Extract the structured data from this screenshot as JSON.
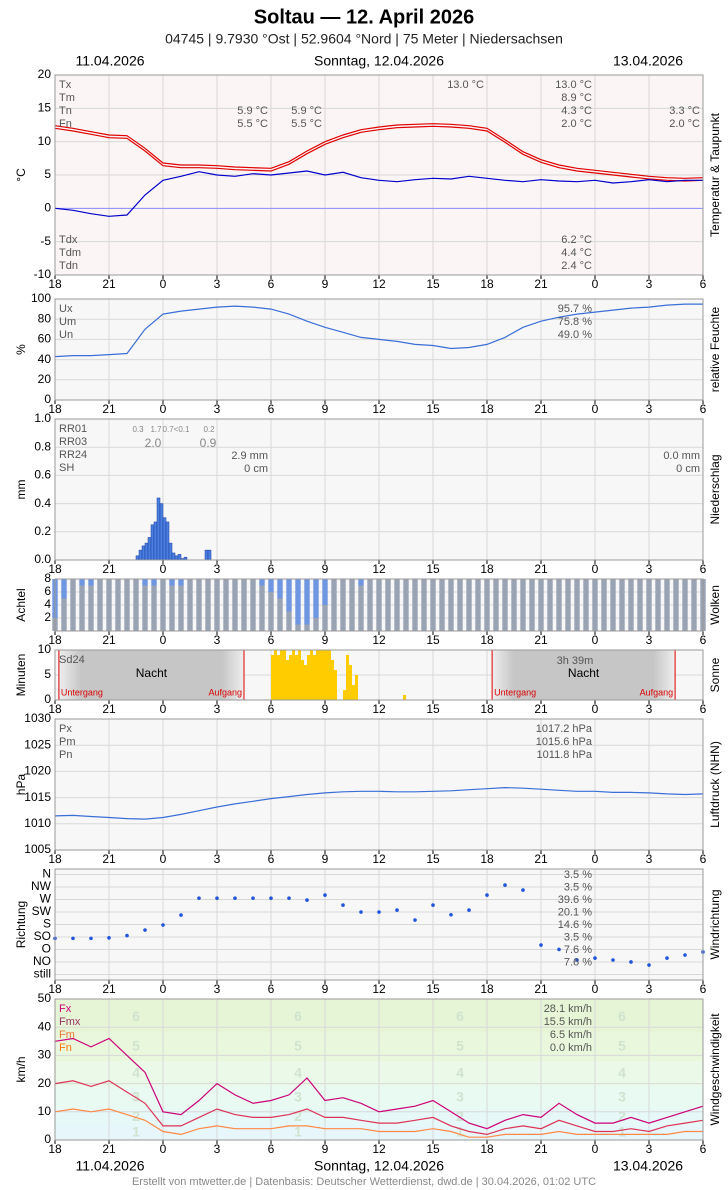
{
  "header": {
    "title": "Soltau  —  12. April 2026",
    "subtitle": "04745  |  9.7930 °Ost  |  52.9604 °Nord  |  75 Meter  |  Niedersachsen",
    "date_left": "11.04.2026",
    "date_center": "Sonntag, 12.04.2026",
    "date_right": "13.04.2026"
  },
  "footer": "Erstellt von mtwetter.de | Datenbasis: Deutscher Wetterdienst, dwd.de | 30.04.2026, 01:02 UTC",
  "x_axis": {
    "xlim": [
      0,
      2160
    ],
    "xticks": [
      {
        "value": 0,
        "label": "18"
      },
      {
        "value": 180,
        "label": "21"
      },
      {
        "value": 360,
        "label": "0"
      },
      {
        "value": 540,
        "label": "3"
      },
      {
        "value": 720,
        "label": "6"
      },
      {
        "value": 900,
        "label": "9"
      },
      {
        "value": 1080,
        "label": "12"
      },
      {
        "value": 1260,
        "label": "15"
      },
      {
        "value": 1440,
        "label": "18"
      },
      {
        "value": 1620,
        "label": "21"
      },
      {
        "value": 1800,
        "label": "0"
      },
      {
        "value": 1980,
        "label": "3"
      },
      {
        "value": 2160,
        "label": "6"
      }
    ]
  },
  "chart_data": [
    {
      "type": "line",
      "ylabel": "°C",
      "side_title": "Temperatur & Taupunkt",
      "ylim": [
        -10,
        20
      ],
      "yticks": [
        -10,
        -5,
        0,
        5,
        10,
        15,
        20
      ],
      "x": [
        0,
        60,
        120,
        180,
        240,
        300,
        360,
        420,
        480,
        540,
        600,
        660,
        720,
        780,
        840,
        900,
        960,
        1020,
        1080,
        1140,
        1200,
        1260,
        1320,
        1380,
        1440,
        1500,
        1560,
        1620,
        1680,
        1740,
        1800,
        1860,
        1920,
        1980,
        2040,
        2100,
        2160
      ],
      "series": [
        {
          "color": "#e00000",
          "values": [
            12.4,
            12.0,
            11.5,
            11.0,
            10.9,
            9.0,
            6.8,
            6.5,
            6.5,
            6.4,
            6.2,
            6.1,
            6.0,
            7.0,
            8.6,
            10.0,
            11.0,
            11.8,
            12.2,
            12.5,
            12.6,
            12.7,
            12.6,
            12.4,
            12.0,
            10.3,
            8.5,
            7.3,
            6.5,
            6.0,
            5.7,
            5.4,
            5.1,
            4.8,
            4.6,
            4.5,
            4.6
          ]
        },
        {
          "color": "#e00000",
          "values": [
            12.0,
            11.6,
            11.1,
            10.6,
            10.5,
            8.6,
            6.4,
            6.1,
            6.1,
            6.0,
            5.8,
            5.7,
            5.6,
            6.6,
            8.2,
            9.6,
            10.6,
            11.4,
            11.8,
            12.1,
            12.2,
            12.3,
            12.2,
            12.0,
            11.6,
            9.9,
            8.1,
            6.9,
            6.1,
            5.6,
            5.3,
            5.0,
            4.7,
            4.4,
            4.2,
            4.1,
            4.2
          ]
        },
        {
          "color": "#0000cc",
          "values": [
            0,
            -0.3,
            -0.8,
            -1.2,
            -1.0,
            2.0,
            4.2,
            4.8,
            5.5,
            5.0,
            4.8,
            5.2,
            5.0,
            5.3,
            5.6,
            5.0,
            5.4,
            4.6,
            4.2,
            4.0,
            4.3,
            4.5,
            4.4,
            4.8,
            4.5,
            4.2,
            4.0,
            4.3,
            4.1,
            4.0,
            4.2,
            3.8,
            4.0,
            4.3,
            4.0,
            4.2,
            4.2
          ]
        }
      ],
      "stat_labels": [
        "Tx",
        "Tm",
        "Tn",
        "Fn"
      ],
      "stat_values": [
        "13.0 °C",
        "8.9 °C",
        "4.3 °C",
        "2.0 °C"
      ],
      "dew_labels": [
        "Tdx",
        "Tdm",
        "Tdn"
      ],
      "dew_values": [
        "6.2 °C",
        "4.4 °C",
        "2.4 °C"
      ],
      "notes": [
        "13.0 °C",
        "5.9 °C",
        "5.5 °C",
        "5.9 °C",
        "5.5 °C",
        "3.3 °C",
        "2.0 °C"
      ]
    },
    {
      "type": "line",
      "ylabel": "%",
      "side_title": "relative Feuchte",
      "ylim": [
        0,
        100
      ],
      "yticks": [
        0,
        20,
        40,
        60,
        80,
        100
      ],
      "x": [
        0,
        60,
        120,
        180,
        240,
        300,
        360,
        420,
        480,
        540,
        600,
        660,
        720,
        780,
        840,
        900,
        960,
        1020,
        1080,
        1140,
        1200,
        1260,
        1320,
        1380,
        1440,
        1500,
        1560,
        1620,
        1680,
        1740,
        1800,
        1860,
        1920,
        1980,
        2040,
        2100,
        2160
      ],
      "series": [
        {
          "color": "#3a6fd8",
          "values": [
            43,
            44,
            44,
            45,
            46,
            70,
            85,
            88,
            90,
            92,
            93,
            92,
            90,
            85,
            78,
            72,
            67,
            62,
            60,
            58,
            55,
            54,
            51,
            52,
            55,
            62,
            72,
            78,
            82,
            85,
            87,
            89,
            91,
            92,
            94,
            95,
            95
          ]
        }
      ],
      "stat_labels": [
        "Ux",
        "Um",
        "Un"
      ],
      "stat_values": [
        "95.7 %",
        "75.8 %",
        "49.0 %"
      ]
    },
    {
      "type": "histogram",
      "ylabel": "mm",
      "side_title": "Niederschlag",
      "ylim": [
        0,
        1
      ],
      "yticks": [
        {
          "value": 0,
          "label": "0.0"
        },
        0.2,
        0.4,
        0.6,
        0.8,
        {
          "value": 1,
          "label": "1.0"
        }
      ],
      "color": "#4a7fe0",
      "bins": [
        270,
        280,
        290,
        300,
        310,
        320,
        330,
        340,
        350,
        360,
        370,
        380,
        390,
        400,
        410,
        420,
        430,
        440,
        450,
        460,
        470,
        480,
        490,
        500,
        510,
        520
      ],
      "values": [
        0.03,
        0.07,
        0.1,
        0.12,
        0.16,
        0.25,
        0.27,
        0.44,
        0.4,
        0.3,
        0.27,
        0.12,
        0.05,
        0.03,
        0.04,
        0.01,
        0.02,
        0,
        0,
        0,
        0,
        0,
        0,
        0.07,
        0.07
      ],
      "stat_labels": [
        "RR01",
        "RR03",
        "RR24",
        "SH"
      ],
      "notes": [
        "0.3",
        "1.7",
        "0.7<0.1",
        "0.2",
        "2.0",
        "0.9",
        "2.9 mm",
        "0 cm",
        "0.0 mm",
        "0 cm"
      ]
    },
    {
      "type": "bar",
      "ylabel": "Achtel",
      "side_title": "Wolken",
      "ylim": [
        0,
        8
      ],
      "yticks": [
        2,
        4,
        6,
        8
      ],
      "color": "#9aa3b4",
      "sky_color": "#6f96e0",
      "x": [
        0,
        30,
        60,
        90,
        120,
        150,
        180,
        210,
        240,
        270,
        300,
        330,
        360,
        390,
        420,
        450,
        480,
        510,
        540,
        570,
        600,
        630,
        660,
        690,
        720,
        750,
        780,
        810,
        840,
        870,
        900,
        930,
        960,
        990,
        1020,
        1050,
        1080,
        1110,
        1140,
        1170,
        1200,
        1230,
        1260,
        1290,
        1320,
        1350,
        1380,
        1410,
        1440,
        1470,
        1500,
        1530,
        1560,
        1590,
        1620,
        1650,
        1680,
        1710,
        1740,
        1770,
        1800,
        1830,
        1860,
        1890,
        1920,
        1950,
        1980,
        2010,
        2040,
        2070,
        2100,
        2130,
        2160
      ],
      "values": [
        2,
        5,
        8,
        7,
        7,
        8,
        8,
        8,
        8,
        8,
        7,
        7,
        8,
        7,
        7,
        8,
        8,
        8,
        8,
        8,
        8,
        8,
        8,
        7,
        6,
        5,
        3,
        1,
        1,
        2,
        4,
        8,
        8,
        8,
        7,
        8,
        8,
        8,
        8,
        8,
        8,
        8,
        8,
        8,
        8,
        8,
        8,
        8,
        8,
        8,
        8,
        8,
        8,
        8,
        8,
        8,
        8,
        8,
        8,
        8,
        8,
        8,
        8,
        8,
        8,
        8,
        8,
        8,
        8,
        8,
        8,
        8,
        8
      ]
    },
    {
      "type": "histogram",
      "ylabel": "Minuten",
      "side_title": "Sonne",
      "ylim": [
        0,
        10
      ],
      "yticks": [
        0,
        5,
        10
      ],
      "color": "#ffcc00",
      "bins": [
        720,
        730,
        740,
        750,
        760,
        770,
        780,
        790,
        800,
        810,
        820,
        830,
        840,
        850,
        860,
        870,
        880,
        890,
        900,
        910,
        920,
        930,
        940,
        950,
        960,
        970,
        980,
        990,
        1000,
        1010,
        1020,
        1030,
        1040,
        1050,
        1060,
        1070,
        1080,
        1090,
        1100,
        1110,
        1120,
        1130,
        1140,
        1150,
        1160,
        1170
      ],
      "values": [
        9,
        10,
        9,
        10,
        10,
        8,
        9,
        10,
        9,
        10,
        8,
        7,
        9,
        10,
        9,
        10,
        10,
        10,
        10,
        10,
        8,
        6,
        0,
        0,
        2,
        9,
        7,
        3,
        5,
        0,
        0,
        0,
        0,
        0,
        0,
        0,
        0,
        0,
        0,
        0,
        0,
        0,
        0,
        0,
        1
      ],
      "nights": [
        {
          "from": 13,
          "to": 630
        },
        {
          "from": 1457,
          "to": 2067
        }
      ],
      "night_label": "Nacht",
      "sunset_label": "Untergang",
      "sunrise_label": "Aufgang",
      "stat_labels": [
        "Sd24"
      ],
      "notes": [
        "3h 39m"
      ]
    },
    {
      "type": "line",
      "ylabel": "hPa",
      "side_title": "Luftdruck (NHN)",
      "ylim": [
        1005,
        1030
      ],
      "yticks": [
        1005,
        1010,
        1015,
        1020,
        1025,
        1030
      ],
      "x": [
        0,
        60,
        120,
        180,
        240,
        300,
        360,
        420,
        480,
        540,
        600,
        660,
        720,
        780,
        840,
        900,
        960,
        1020,
        1080,
        1140,
        1200,
        1260,
        1320,
        1380,
        1440,
        1500,
        1560,
        1620,
        1680,
        1740,
        1800,
        1860,
        1920,
        1980,
        2040,
        2100,
        2160
      ],
      "series": [
        {
          "color": "#3a6fd8",
          "values": [
            1011.5,
            1011.6,
            1011.4,
            1011.2,
            1011.0,
            1010.9,
            1011.2,
            1011.8,
            1012.5,
            1013.2,
            1013.8,
            1014.3,
            1014.8,
            1015.2,
            1015.6,
            1015.9,
            1016.1,
            1016.2,
            1016.2,
            1016.1,
            1016.1,
            1016.2,
            1016.3,
            1016.5,
            1016.7,
            1016.9,
            1016.8,
            1016.6,
            1016.4,
            1016.2,
            1016.2,
            1016.0,
            1016.0,
            1015.9,
            1015.7,
            1015.6,
            1015.7
          ]
        }
      ],
      "stat_labels": [
        "Px",
        "Pm",
        "Pn"
      ],
      "stat_values": [
        "1017.2 hPa",
        "1015.6 hPa",
        "1011.8 hPa"
      ]
    },
    {
      "type": "scatter",
      "ylabel": "Richtung",
      "side_title": "Windrichtung",
      "ylim": [
        -20,
        380
      ],
      "color": "#2255dd",
      "yticks": [
        {
          "value": 360,
          "label": "N"
        },
        {
          "value": 315,
          "label": "NW"
        },
        {
          "value": 270,
          "label": "W"
        },
        {
          "value": 225,
          "label": "SW"
        },
        {
          "value": 180,
          "label": "S"
        },
        {
          "value": 135,
          "label": "SO"
        },
        {
          "value": 90,
          "label": "O"
        },
        {
          "value": 45,
          "label": "NO"
        },
        {
          "value": 0,
          "label": "still"
        }
      ],
      "x": [
        0,
        60,
        120,
        180,
        240,
        300,
        360,
        420,
        480,
        540,
        600,
        660,
        720,
        780,
        840,
        900,
        960,
        1020,
        1080,
        1140,
        1200,
        1260,
        1320,
        1380,
        1440,
        1500,
        1560,
        1620,
        1680,
        1740,
        1800,
        1860,
        1920,
        1980,
        2040,
        2100,
        2160
      ],
      "values": [
        130,
        130,
        130,
        132,
        140,
        160,
        178,
        214,
        275,
        275,
        275,
        275,
        275,
        275,
        268,
        286,
        250,
        225,
        225,
        232,
        196,
        250,
        215,
        232,
        286,
        322,
        304,
        106,
        90,
        52,
        59,
        52,
        45,
        34,
        59,
        70,
        81
      ],
      "stat_values": [
        "3.5 %",
        "3.5 %",
        "39.6 %",
        "20.1 %",
        "14.6 %",
        "3.5 %",
        "7.6 %",
        "7.6 %"
      ]
    },
    {
      "type": "line",
      "ylabel": "km/h",
      "side_title": "Windgeschwindigkeit",
      "ylim": [
        0,
        50
      ],
      "yticks": [
        0,
        10,
        20,
        30,
        40,
        50
      ],
      "beaufort": {
        "levels": [
          1,
          2,
          3,
          4,
          5,
          6
        ],
        "upper": [
          5,
          11,
          19,
          28,
          38,
          49
        ],
        "colors": [
          "#e6f6fb",
          "#e6f8f8",
          "#e8faf1",
          "#ebfae8",
          "#e9f8dd",
          "#e6f5d6"
        ]
      },
      "x": [
        0,
        60,
        120,
        180,
        240,
        300,
        360,
        420,
        480,
        540,
        600,
        660,
        720,
        780,
        840,
        900,
        960,
        1020,
        1080,
        1140,
        1200,
        1260,
        1320,
        1380,
        1440,
        1500,
        1560,
        1620,
        1680,
        1740,
        1800,
        1860,
        1920,
        1980,
        2040,
        2100,
        2160
      ],
      "series": [
        {
          "color": "#cc0077",
          "values": [
            35,
            36,
            33,
            36,
            30,
            24,
            10,
            9,
            14,
            20,
            16,
            13,
            14,
            16,
            22,
            14,
            15,
            13,
            10,
            11,
            12,
            14,
            10,
            6,
            4,
            7,
            9,
            8,
            13,
            9,
            6,
            6,
            8,
            6,
            8,
            10,
            12
          ]
        },
        {
          "color": "#dd3355",
          "values": [
            20,
            21,
            19,
            21,
            17,
            13,
            5,
            5,
            8,
            11,
            9,
            8,
            8,
            9,
            11,
            8,
            8,
            7,
            6,
            6,
            7,
            8,
            5,
            3,
            2,
            4,
            5,
            4,
            7,
            5,
            3,
            3,
            4,
            3,
            5,
            6,
            7
          ]
        },
        {
          "color": "#ff8844",
          "values": [
            10,
            11,
            10,
            11,
            9,
            7,
            3,
            2,
            4,
            5,
            4,
            4,
            4,
            5,
            5,
            4,
            4,
            4,
            3,
            3,
            3,
            4,
            3,
            1,
            1,
            2,
            2,
            2,
            3,
            2,
            2,
            2,
            2,
            2,
            2,
            3,
            3
          ]
        }
      ],
      "stat_labels": [
        "Fx",
        "Fmx",
        "Fm",
        "Fn"
      ],
      "stat_values": [
        "28.1 km/h",
        "15.5 km/h",
        "6.5 km/h",
        "0.0 km/h"
      ]
    }
  ]
}
